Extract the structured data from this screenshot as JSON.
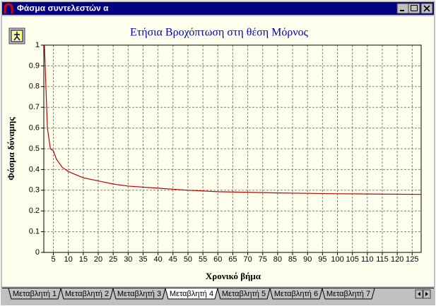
{
  "window": {
    "title": "Φάσμα συντελεστών α"
  },
  "chart_data": {
    "type": "line",
    "title": "Ετήσια Βροχόπτωση στη θέση Μόρνος",
    "x_label": "Χρονικό βήμα",
    "y_label": "Φάσμα δύναμης",
    "x": [
      2,
      3,
      4,
      5,
      6,
      8,
      10,
      15,
      20,
      25,
      30,
      40,
      50,
      60,
      70,
      80,
      90,
      100,
      110,
      128
    ],
    "series": [
      {
        "color": "#c00000",
        "values": [
          1,
          0.6,
          0.5,
          0.49,
          0.45,
          0.41,
          0.39,
          0.36,
          0.345,
          0.33,
          0.32,
          0.31,
          0.3,
          0.293,
          0.29,
          0.287,
          0.285,
          0.283,
          0.282,
          0.28
        ]
      }
    ],
    "xlim": [
      1.8,
      128
    ],
    "xticks": [
      5,
      10,
      15,
      20,
      25,
      30,
      35,
      40,
      45,
      50,
      55,
      60,
      65,
      70,
      75,
      80,
      85,
      90,
      95,
      100,
      105,
      110,
      115,
      120,
      125
    ],
    "ylim": [
      0,
      1
    ],
    "yticks": [
      0,
      0.1,
      0.2,
      0.3,
      0.4,
      0.5,
      0.6,
      0.7,
      0.8,
      0.9,
      1
    ],
    "grid": true
  },
  "tabs": [
    "Μεταβλητή 1",
    "Μεταβλητή 2",
    "Μεταβλητή 3",
    "Μεταβλητή 4",
    "Μεταβλητή 5",
    "Μεταβλητή 6",
    "Μεταβλητή 7"
  ],
  "active_tab": 3
}
